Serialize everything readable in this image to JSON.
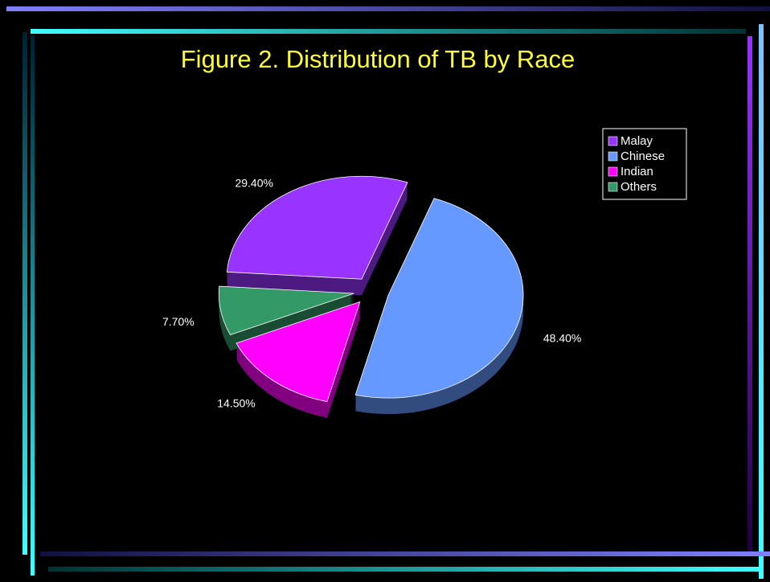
{
  "chart_data": {
    "type": "pie",
    "title": "Figure 2.  Distribution of TB by Race",
    "categories": [
      "Malay",
      "Chinese",
      "Indian",
      "Others"
    ],
    "values": [
      29.4,
      48.4,
      14.5,
      7.7
    ],
    "value_labels": [
      "29.40%",
      "48.40%",
      "14.50%",
      "7.70%"
    ],
    "colors": [
      "#9933ff",
      "#6699ff",
      "#ff00ff",
      "#339966"
    ],
    "legend": "top-right"
  }
}
